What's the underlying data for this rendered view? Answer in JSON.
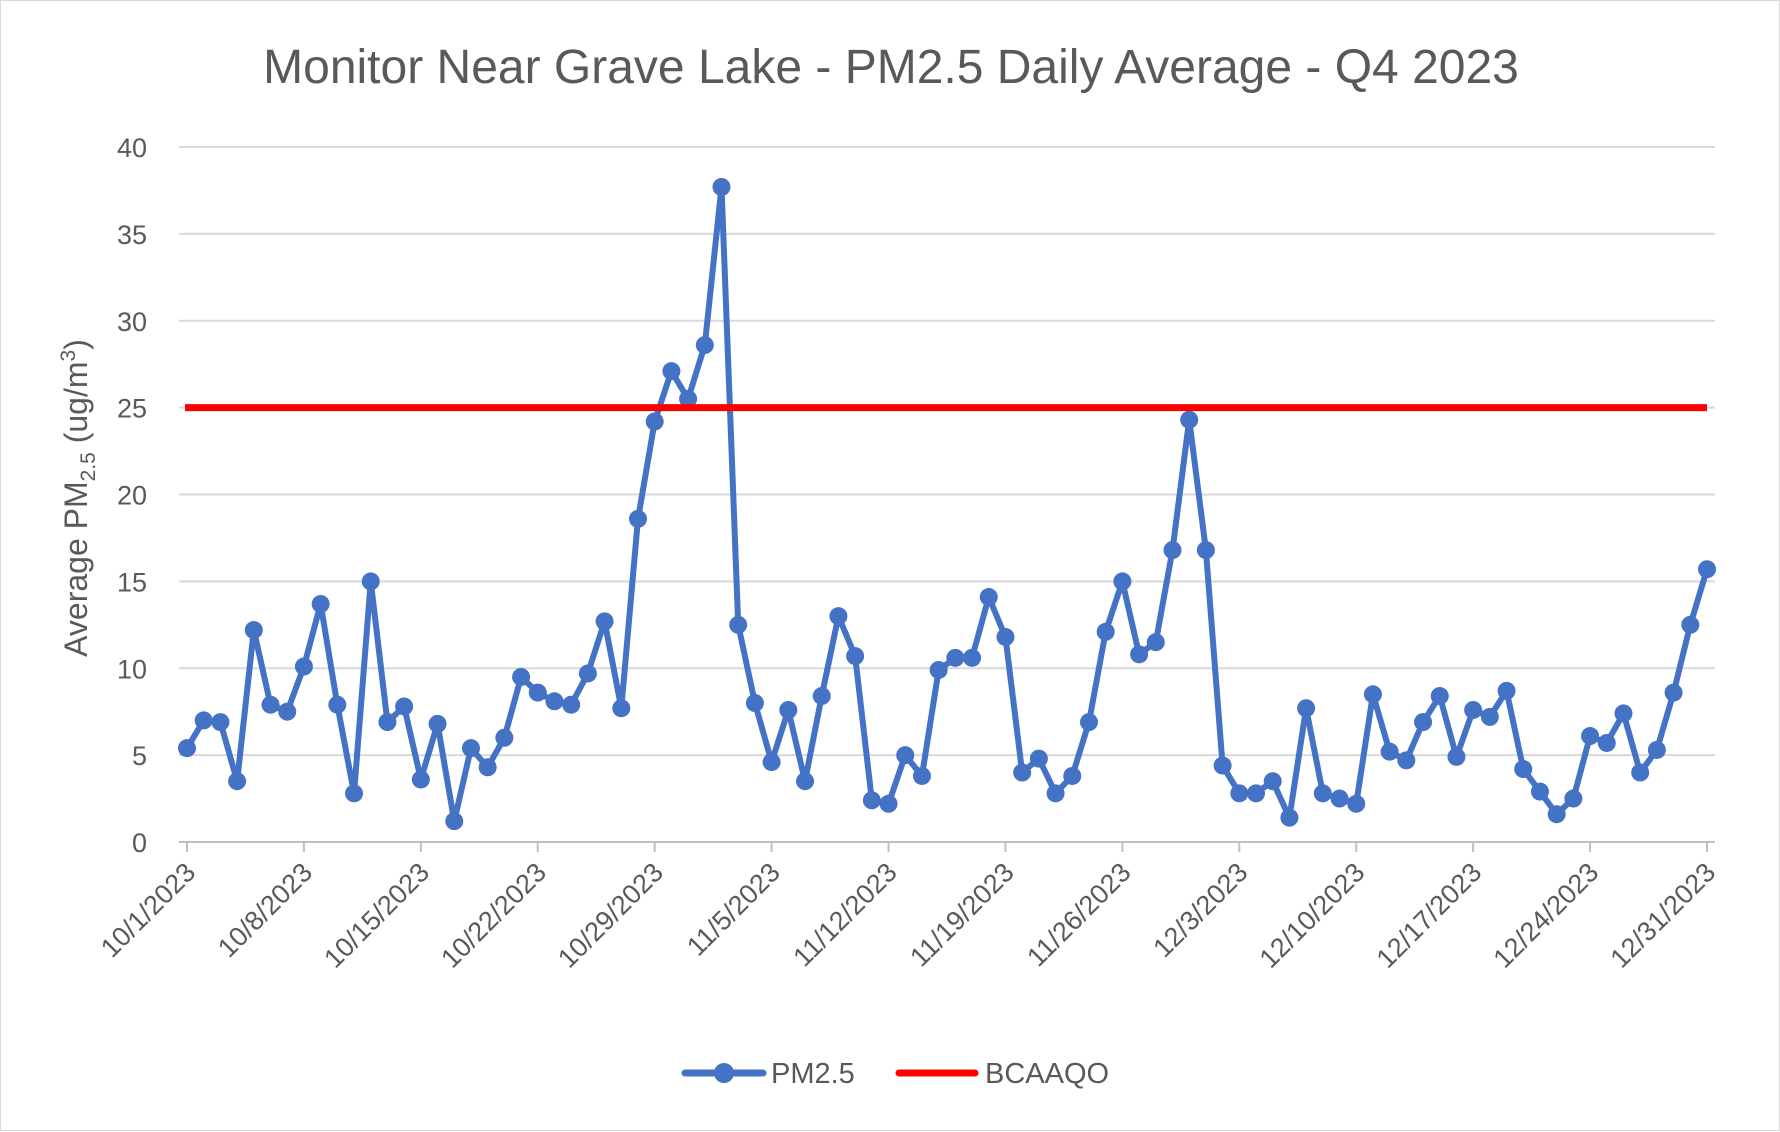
{
  "chart_data": {
    "type": "line",
    "title": "Monitor Near Grave Lake - PM2.5 Daily Average - Q4 2023",
    "ylabel": {
      "main": "Average PM",
      "sub": "2.5",
      "unit_open": " (ug/m",
      "sup": "3",
      "unit_close": ")"
    },
    "xlabel": "",
    "ylim": [
      0,
      40
    ],
    "ytick_step": 5,
    "yticks": [
      "0",
      "5",
      "10",
      "15",
      "20",
      "25",
      "30",
      "35",
      "40"
    ],
    "x_start": "10/1/2023",
    "x_end": "12/31/2023",
    "xticks": [
      "10/1/2023",
      "10/8/2023",
      "10/15/2023",
      "10/22/2023",
      "10/29/2023",
      "11/5/2023",
      "11/12/2023",
      "11/19/2023",
      "11/26/2023",
      "12/3/2023",
      "12/10/2023",
      "12/17/2023",
      "12/24/2023",
      "12/31/2023"
    ],
    "grid": true,
    "legend_position": "bottom",
    "series": [
      {
        "name": "PM2.5",
        "color": "#4472C4",
        "marker": "circle",
        "values": [
          5.4,
          7.0,
          6.9,
          3.5,
          12.2,
          7.9,
          7.5,
          10.1,
          13.7,
          7.9,
          2.8,
          15.0,
          6.9,
          7.8,
          3.6,
          6.8,
          1.2,
          5.4,
          4.3,
          6.0,
          9.5,
          8.6,
          8.1,
          7.9,
          9.7,
          12.7,
          7.7,
          18.6,
          24.2,
          27.1,
          25.5,
          28.6,
          37.7,
          12.5,
          8.0,
          4.6,
          7.6,
          3.5,
          8.4,
          13.0,
          10.7,
          2.4,
          2.2,
          5.0,
          3.8,
          9.9,
          10.6,
          10.6,
          14.1,
          11.8,
          4.0,
          4.8,
          2.8,
          3.8,
          6.9,
          12.1,
          15.0,
          10.8,
          11.5,
          16.8,
          24.3,
          16.8,
          4.4,
          2.8,
          2.8,
          3.5,
          1.4,
          7.7,
          2.8,
          2.5,
          2.2,
          8.5,
          5.2,
          4.7,
          6.9,
          8.4,
          4.9,
          7.6,
          7.2,
          8.7,
          4.2,
          2.9,
          1.6,
          2.5,
          6.1,
          5.7,
          7.4,
          4.0,
          5.3,
          8.6,
          12.5,
          15.7
        ]
      },
      {
        "name": "BCAAQO",
        "color": "#FF0000",
        "marker": "none",
        "values_constant": 25
      }
    ]
  }
}
